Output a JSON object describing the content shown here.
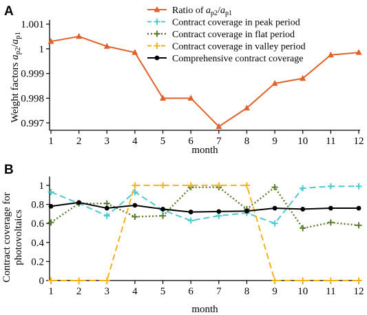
{
  "panels": [
    {
      "letter": "A"
    },
    {
      "letter": "B"
    }
  ],
  "legend": [
    {
      "label": "Ratio of ap2/ap1",
      "label_parts": [
        "Ratio of ",
        "a",
        "p2",
        "/",
        "a",
        "p1"
      ],
      "color": "#e0622a",
      "style": "solid",
      "marker": "triangle"
    },
    {
      "label": "Contract coverage in peak period",
      "color": "#4fc8d0",
      "style": "dash",
      "marker": "plus"
    },
    {
      "label": "Contract coverage in flat period",
      "color": "#5a7a2e",
      "style": "dot",
      "marker": "plus"
    },
    {
      "label": "Contract coverage in valley period",
      "color": "#f2b21e",
      "style": "dash",
      "marker": "plus"
    },
    {
      "label": "Comprehensive contract coverage",
      "color": "#000000",
      "style": "solid",
      "marker": "circle"
    }
  ],
  "chart_data": [
    {
      "type": "line",
      "xlabel": "month",
      "ylabel": "Weight factors ap2/ap1",
      "ylabel_parts": [
        "Weight factors ",
        "a",
        "p2",
        "/",
        "a",
        "p1"
      ],
      "x": [
        1,
        2,
        3,
        4,
        5,
        6,
        7,
        8,
        9,
        10,
        11,
        12
      ],
      "xticks": [
        "1",
        "2",
        "3",
        "4",
        "5",
        "6",
        "7",
        "8",
        "9",
        "10",
        "11",
        "12"
      ],
      "ylim": [
        0.9967,
        1.001
      ],
      "yticks": [
        0.997,
        0.998,
        0.999,
        1,
        1.001
      ],
      "ytick_labels": [
        "0.997",
        "0.998",
        "0.999",
        "1",
        "1.001"
      ],
      "series": [
        {
          "name": "Ratio of ap2/ap1",
          "color": "#e0622a",
          "style": "solid",
          "marker": "triangle",
          "values": [
            1.0003,
            1.0005,
            1.0001,
            0.99985,
            0.998,
            0.998,
            0.99685,
            0.9976,
            0.9986,
            0.9988,
            0.99975,
            0.99985
          ]
        }
      ]
    },
    {
      "type": "line",
      "xlabel": "month",
      "ylabel": "Contract coverage for photovoltaics",
      "ylabel_lines": [
        "Contract coverage for",
        "photovoltaics"
      ],
      "x": [
        1,
        2,
        3,
        4,
        5,
        6,
        7,
        8,
        9,
        10,
        11,
        12
      ],
      "xticks": [
        "1",
        "2",
        "3",
        "4",
        "5",
        "6",
        "7",
        "8",
        "9",
        "10",
        "11",
        "12"
      ],
      "ylim": [
        0,
        1.05
      ],
      "yticks": [
        0,
        0.2,
        0.4,
        0.6,
        0.8,
        1
      ],
      "ytick_labels": [
        "0",
        "0.2",
        "0.4",
        "0.6",
        "0.8",
        "1"
      ],
      "series": [
        {
          "name": "Contract coverage in peak period",
          "color": "#4fc8d0",
          "style": "dash",
          "marker": "plus",
          "values": [
            0.93,
            0.81,
            0.68,
            0.93,
            0.74,
            0.63,
            0.68,
            0.71,
            0.6,
            0.97,
            0.99,
            0.99
          ]
        },
        {
          "name": "Contract coverage in flat period",
          "color": "#5a7a2e",
          "style": "dot",
          "marker": "plus",
          "values": [
            0.61,
            0.81,
            0.81,
            0.67,
            0.68,
            0.98,
            0.98,
            0.75,
            0.98,
            0.55,
            0.61,
            0.58
          ]
        },
        {
          "name": "Contract coverage in valley period",
          "color": "#f2b21e",
          "style": "dash",
          "marker": "plus",
          "values": [
            0,
            0,
            0,
            1,
            1,
            1,
            1,
            1,
            0,
            0,
            0,
            0
          ]
        },
        {
          "name": "Comprehensive contract coverage",
          "color": "#000000",
          "style": "solid",
          "marker": "circle",
          "values": [
            0.78,
            0.82,
            0.76,
            0.79,
            0.75,
            0.72,
            0.725,
            0.73,
            0.76,
            0.75,
            0.76,
            0.76
          ]
        }
      ]
    }
  ]
}
